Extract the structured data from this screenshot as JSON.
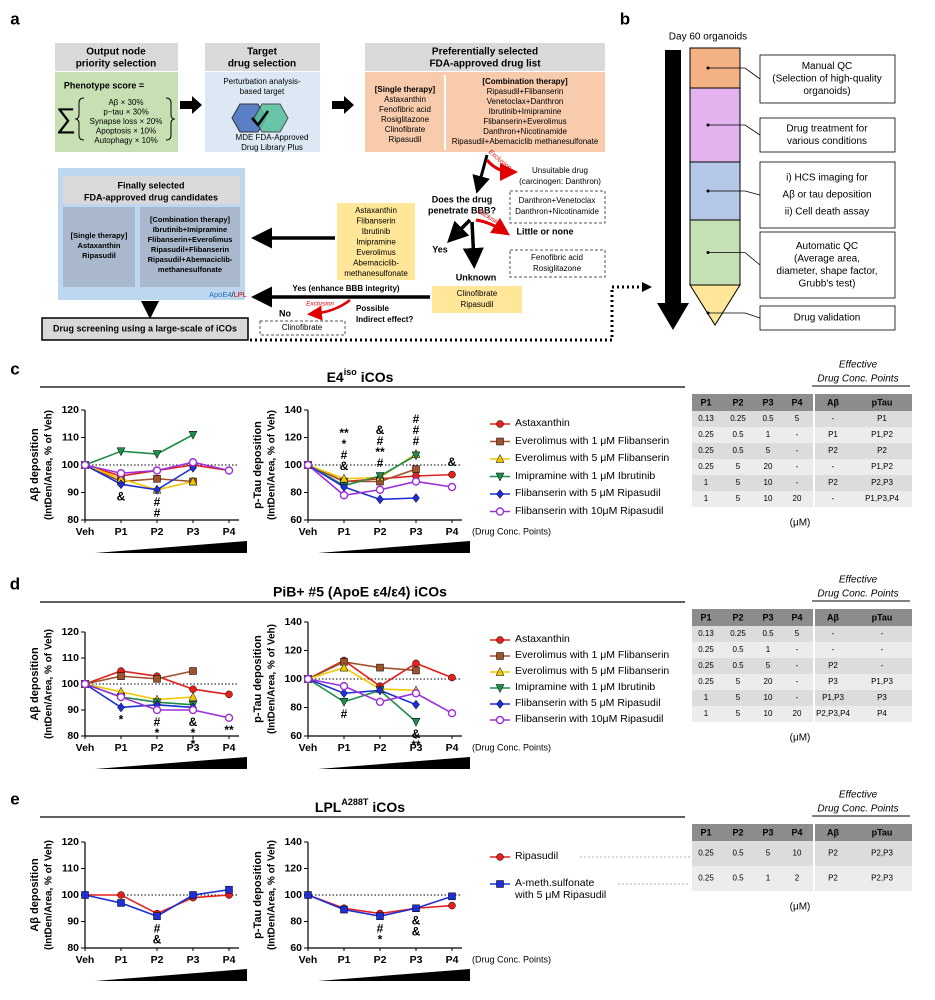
{
  "panel_a": {
    "label": "a",
    "output": {
      "header": [
        "Output node",
        "priority selection"
      ],
      "score_title": "Phenotype score =",
      "sigma": "∑",
      "terms": [
        "Aβ × 30%",
        "p−tau × 30%",
        "Synapse loss × 20%",
        "Apoptosis × 10%",
        "Autophagy × 10%"
      ]
    },
    "target": {
      "header": [
        "Target",
        "drug selection"
      ],
      "lines": [
        "Perturbation analysis-",
        "based target"
      ],
      "library": [
        "MDE FDA-Approved",
        "Drug Library Plus"
      ]
    },
    "preferred": {
      "header": [
        "Preferentially selected",
        "FDA-approved drug list"
      ],
      "single_title": "[Single therapy]",
      "single": [
        "Astaxanthin",
        "Fenofibric acid",
        "Rosiglitazone",
        "Clinofibrate",
        "Ripasudil"
      ],
      "combo_title": "[Combination therapy]",
      "combo": [
        "Ripasudil+Flibanserin",
        "Venetoclax+Danthron",
        "Ibrutinib+Imipramine",
        "Flibanserin+Everolimus",
        "Danthron+Nicotinamide",
        "Ripasudil+Abemaciclib methanesulfonate"
      ]
    },
    "exclusions": [
      "Exclusion",
      "Exclusion",
      "Exclusion"
    ],
    "unsuitable": [
      "Unsuitable drug",
      "(carcinogen: Danthron)"
    ],
    "unsuitable_drugs": [
      "Danthron+Venetoclax",
      "Danthron+Nicotinamide"
    ],
    "bbb_question": [
      "Does the drug",
      "penetrate BBB?"
    ],
    "yes": "Yes",
    "little": "Little or none",
    "little_drugs": [
      "Fenofibric acid",
      "Rosiglitazone"
    ],
    "unknown": "Unknown",
    "unknown_drugs": [
      "Clinofibrate",
      "Ripasudil"
    ],
    "penetrating_drugs": [
      "Astaxanthin",
      "Flibanserin",
      "Ibrutinib",
      "Imipramine",
      "Everolimus",
      "Abemaciclib-",
      "methanesulfonate"
    ],
    "indirect_yes": "Yes (enhance BBB integrity)",
    "indirect_question": [
      "Possible",
      "Indirect effect?"
    ],
    "no": "No",
    "no_drugs": [
      "Clinofibrate"
    ],
    "final": {
      "header": [
        "Finally selected",
        "FDA-approved drug candidates"
      ],
      "single_title": "[Single therapy]",
      "single": [
        {
          "text": "Astaxanthin",
          "color": "#1f6fc4"
        },
        {
          "text": "Ripasudil",
          "color": "#c00000"
        }
      ],
      "combo_title": "[Combination therapy]",
      "combo": [
        {
          "text": "Ibrutinib+Imipramine",
          "color": "#1f6fc4"
        },
        {
          "text": "Flibanserin+Everolimus",
          "color": "#1f6fc4"
        },
        {
          "text": "Ripasudil+Flibanserin",
          "color": "#1f6fc4"
        },
        {
          "text": "Ripasudil+Abemaciclib-",
          "color": "#c00000"
        },
        {
          "text": "methanesulfonate",
          "color": "#c00000"
        }
      ],
      "key": [
        {
          "text": "ApoE4",
          "color": "#1f6fc4"
        },
        {
          "text": "/",
          "color": "#000000"
        },
        {
          "text": "LPL",
          "color": "#c00000"
        }
      ]
    },
    "screening": "Drug screening using a large-scale of iCOs"
  },
  "panel_b": {
    "label": "b",
    "title": "Day 60 organoids",
    "steps": [
      {
        "lines": [
          "Manual QC",
          "(Selection of high-quality",
          "organoids)"
        ],
        "color": "#f4b183"
      },
      {
        "lines": [
          "Drug treatment for",
          "various conditions"
        ],
        "color": "#e2b3ef"
      },
      {
        "lines": [
          "i) HCS imaging for",
          "Aβ or tau deposition",
          "ii) Cell death assay"
        ],
        "color": "#b4c7e7"
      },
      {
        "lines": [
          "Automatic QC",
          "(Average area,",
          "diameter, shape factor,",
          "Grubb's test)"
        ],
        "color": "#c5e0b4"
      },
      {
        "lines": [
          "Drug validation"
        ],
        "color": "#ffe699"
      }
    ]
  },
  "panels": [
    {
      "label": "c",
      "title": "E4",
      "title_sup": "iso",
      "title_suffix": "iCOs",
      "effective": [
        "Effective",
        "Drug Conc. Points"
      ],
      "table": {
        "columns": [
          "P1",
          "P2",
          "P3",
          "P4",
          "Aβ",
          "pTau"
        ],
        "rows": [
          [
            0.13,
            0.25,
            0.5,
            5,
            "-",
            "P1"
          ],
          [
            0.25,
            0.5,
            1,
            "-",
            "P1",
            "P1,P2"
          ],
          [
            0.25,
            0.5,
            5,
            "-",
            "P2",
            "P2"
          ],
          [
            0.25,
            5,
            20,
            "-",
            "-",
            "P1,P2"
          ],
          [
            1,
            5,
            10,
            "-",
            "P2",
            "P2,P3"
          ],
          [
            1,
            5,
            10,
            20,
            "-",
            "P1,P3,P4"
          ]
        ]
      },
      "unit": "(μM)"
    },
    {
      "label": "d",
      "title": "PiB+ #5 (ApoE ε4/ε4) iCOs",
      "effective": [
        "Effective",
        "Drug Conc. Points"
      ],
      "table": {
        "columns": [
          "P1",
          "P2",
          "P3",
          "P4",
          "Aβ",
          "pTau"
        ],
        "rows": [
          [
            0.13,
            0.25,
            0.5,
            5,
            "-",
            "-"
          ],
          [
            0.25,
            0.5,
            1,
            "-",
            "-",
            "-"
          ],
          [
            0.25,
            0.5,
            5,
            "-",
            "P2",
            "-"
          ],
          [
            0.25,
            5,
            20,
            "-",
            "P3",
            "P1,P3"
          ],
          [
            1,
            5,
            10,
            "-",
            "P1,P3",
            "P3"
          ],
          [
            1,
            5,
            10,
            20,
            "P2,P3,P4",
            "P4"
          ]
        ]
      },
      "unit": "(μM)"
    },
    {
      "label": "e",
      "title": "LPL",
      "title_sup": "A288T",
      "title_suffix": "iCOs",
      "effective": [
        "Effective",
        "Drug Conc. Points"
      ],
      "table": {
        "columns": [
          "P1",
          "P2",
          "P3",
          "P4",
          "Aβ",
          "pTau"
        ],
        "rows": [
          [
            0.25,
            0.5,
            5,
            10,
            "P2",
            "P2,P3"
          ],
          [
            0.25,
            0.5,
            1,
            2,
            "P2",
            "P2,P3"
          ]
        ]
      },
      "unit": "(μM)"
    }
  ],
  "chart_data": [
    {
      "type": "line",
      "ylabel": [
        "Aβ deposition",
        "(IntDen/Area, % of Veh)"
      ],
      "categories": [
        "Veh",
        "P1",
        "P2",
        "P3",
        "P4"
      ],
      "ylim": [
        80,
        120
      ],
      "yticks": [
        80,
        90,
        100,
        110,
        120
      ],
      "hline": 100,
      "annotation_side": "below",
      "series": [
        {
          "color": "#e3201b",
          "marker": "circle",
          "values": [
            100,
            96,
            98,
            100,
            98
          ]
        },
        {
          "color": "#a0522d",
          "marker": "square",
          "values": [
            100,
            94,
            95,
            94,
            null
          ]
        },
        {
          "color": "#f0c800",
          "marker": "triangle",
          "values": [
            100,
            95,
            91,
            94,
            null
          ]
        },
        {
          "color": "#1e8c4a",
          "marker": "triangle-down",
          "values": [
            100,
            105,
            104,
            111,
            null
          ]
        },
        {
          "color": "#1f2fd6",
          "marker": "diamond",
          "values": [
            100,
            93,
            91,
            99,
            null
          ]
        },
        {
          "color": "#9b30d9",
          "marker": "circle-open",
          "values": [
            100,
            97,
            98,
            101,
            98
          ]
        }
      ],
      "annotations": [
        {
          "x": "P1",
          "text": "&",
          "color": "#c06010"
        },
        {
          "x": "P2",
          "text": "#",
          "color": "#1f2fd6"
        },
        {
          "x": "P2",
          "text": "#",
          "color": "#f0c800"
        }
      ]
    },
    {
      "type": "line",
      "ylabel": [
        "p-Tau deposition",
        "(IntDen/Area, % of Veh)"
      ],
      "xlabel": "(Drug Conc. Points)",
      "categories": [
        "Veh",
        "P1",
        "P2",
        "P3",
        "P4"
      ],
      "ylim": [
        60,
        140
      ],
      "yticks": [
        60,
        80,
        100,
        120,
        140
      ],
      "hline": 100,
      "annotation_side": "above",
      "series": [
        {
          "name": "Astaxanthin",
          "color": "#e3201b",
          "marker": "circle",
          "values": [
            100,
            88,
            90,
            92,
            93
          ]
        },
        {
          "name": "Everolimus with 1 μM Flibanserin",
          "color": "#a0522d",
          "marker": "square",
          "values": [
            100,
            88,
            88,
            97,
            null
          ]
        },
        {
          "name": "Everolimus with 5 μM Flibanserin",
          "color": "#f0c800",
          "marker": "triangle",
          "values": [
            100,
            90,
            91,
            108,
            null
          ]
        },
        {
          "name": "Imipramine with 1 μM Ibrutinib",
          "color": "#1e8c4a",
          "marker": "triangle-down",
          "values": [
            100,
            85,
            92,
            107,
            null
          ]
        },
        {
          "name": "Flibanserin with 5 μM Ripasudil",
          "color": "#1f2fd6",
          "marker": "diamond",
          "values": [
            100,
            84,
            75,
            76,
            null
          ]
        },
        {
          "name": "Flibanserin with 10μM Ripasudil",
          "color": "#9b30d9",
          "marker": "circle-open",
          "values": [
            100,
            78,
            82,
            88,
            84
          ]
        }
      ],
      "annotations": [
        {
          "x": "P1",
          "text": "**",
          "color": "#1e8c4a"
        },
        {
          "x": "P1",
          "text": "*",
          "color": "#9b30d9"
        },
        {
          "x": "P1",
          "text": "#",
          "color": "#c06010"
        },
        {
          "x": "P1",
          "text": "&",
          "color": "#e3201b"
        },
        {
          "x": "P2",
          "text": "&",
          "color": "#f0c800"
        },
        {
          "x": "P2",
          "text": "#",
          "color": "#1f2fd6"
        },
        {
          "x": "P2",
          "text": "**",
          "color": "#1e8c4a"
        },
        {
          "x": "P2",
          "text": "#",
          "color": "#c06010"
        },
        {
          "x": "P3",
          "text": "#",
          "color": "#9b30d9"
        },
        {
          "x": "P3",
          "text": "#",
          "color": "#1f2fd6"
        },
        {
          "x": "P3",
          "text": "#",
          "color": "#f0c800"
        },
        {
          "x": "P4",
          "text": "&",
          "color": "#9b30d9"
        }
      ]
    },
    {
      "type": "line",
      "ylabel": [
        "Aβ deposition",
        "(IntDen/Area, % of Veh)"
      ],
      "categories": [
        "Veh",
        "P1",
        "P2",
        "P3",
        "P4"
      ],
      "ylim": [
        80,
        120
      ],
      "yticks": [
        80,
        90,
        100,
        110,
        120
      ],
      "hline": 100,
      "annotation_side": "below",
      "series": [
        {
          "color": "#e3201b",
          "marker": "circle",
          "values": [
            100,
            105,
            103,
            98,
            96
          ]
        },
        {
          "color": "#a0522d",
          "marker": "square",
          "values": [
            100,
            103,
            102,
            105,
            null
          ]
        },
        {
          "color": "#f0c800",
          "marker": "triangle",
          "values": [
            100,
            97,
            94,
            95,
            null
          ]
        },
        {
          "color": "#1e8c4a",
          "marker": "triangle-down",
          "values": [
            100,
            95,
            93,
            92,
            null
          ]
        },
        {
          "color": "#1f2fd6",
          "marker": "diamond",
          "values": [
            100,
            91,
            92,
            91,
            null
          ]
        },
        {
          "color": "#9b30d9",
          "marker": "circle-open",
          "values": [
            100,
            95,
            90,
            90,
            87
          ]
        }
      ],
      "annotations": [
        {
          "x": "P1",
          "text": "*",
          "color": "#1f2fd6"
        },
        {
          "x": "P2",
          "text": "#",
          "color": "#f0c800"
        },
        {
          "x": "P2",
          "text": "*",
          "color": "#9b30d9"
        },
        {
          "x": "P3",
          "text": "&",
          "color": "#1f2fd6"
        },
        {
          "x": "P3",
          "text": "*",
          "color": "#1e8c4a"
        },
        {
          "x": "P3",
          "text": "*",
          "color": "#9b30d9"
        },
        {
          "x": "P4",
          "text": "**",
          "color": "#9b30d9"
        }
      ]
    },
    {
      "type": "line",
      "ylabel": [
        "p-Tau deposition",
        "(IntDen/Area, % of Veh)"
      ],
      "xlabel": "(Drug Conc. Points)",
      "categories": [
        "Veh",
        "P1",
        "P2",
        "P3",
        "P4"
      ],
      "ylim": [
        60,
        140
      ],
      "yticks": [
        60,
        80,
        100,
        120,
        140
      ],
      "hline": 100,
      "annotation_side": "below",
      "series": [
        {
          "name": "Astaxanthin",
          "color": "#e3201b",
          "marker": "circle",
          "values": [
            100,
            113,
            95,
            111,
            101
          ]
        },
        {
          "name": "Everolimus with 1 μM Flibanserin",
          "color": "#a0522d",
          "marker": "square",
          "values": [
            100,
            112,
            108,
            106,
            null
          ]
        },
        {
          "name": "Everolimus with 5 μM Flibanserin",
          "color": "#f0c800",
          "marker": "triangle",
          "values": [
            100,
            108,
            93,
            92,
            null
          ]
        },
        {
          "name": "Imipramine with 1 μM Ibrutinib",
          "color": "#1e8c4a",
          "marker": "triangle-down",
          "values": [
            100,
            84,
            92,
            70,
            null
          ]
        },
        {
          "name": "Flibanserin with 5 μM Ripasudil",
          "color": "#1f2fd6",
          "marker": "diamond",
          "values": [
            100,
            90,
            92,
            82,
            null
          ]
        },
        {
          "name": "Flibanserin with 10μM Ripasudil",
          "color": "#9b30d9",
          "marker": "circle-open",
          "values": [
            100,
            95,
            84,
            90,
            76
          ]
        }
      ],
      "annotations": [
        {
          "x": "P1",
          "text": "#",
          "color": "#1e8c4a"
        },
        {
          "x": "P3",
          "text": "&",
          "color": "#1f2fd6"
        },
        {
          "x": "P3",
          "text": "**",
          "color": "#1e8c4a"
        }
      ]
    },
    {
      "type": "line",
      "ylabel": [
        "Aβ deposition",
        "(IntDen/Area, % of Veh)"
      ],
      "categories": [
        "Veh",
        "P1",
        "P2",
        "P3",
        "P4"
      ],
      "ylim": [
        80,
        120
      ],
      "yticks": [
        80,
        90,
        100,
        110,
        120
      ],
      "hline": 100,
      "annotation_side": "below",
      "series": [
        {
          "color": "#e3201b",
          "marker": "circle",
          "values": [
            100,
            100,
            93,
            99,
            100
          ]
        },
        {
          "color": "#1f2fd6",
          "marker": "square",
          "values": [
            100,
            97,
            92,
            100,
            102
          ]
        }
      ],
      "annotations": [
        {
          "x": "P2",
          "text": "#",
          "color": "#e3201b"
        },
        {
          "x": "P2",
          "text": "&",
          "color": "#1f2fd6"
        }
      ]
    },
    {
      "type": "line",
      "ylabel": [
        "p-Tau deposition",
        "(IntDen/Area, % of Veh)"
      ],
      "xlabel": "(Drug Conc. Points)",
      "categories": [
        "Veh",
        "P1",
        "P2",
        "P3",
        "P4"
      ],
      "ylim": [
        60,
        140
      ],
      "yticks": [
        60,
        80,
        100,
        120,
        140
      ],
      "hline": 100,
      "annotation_side": "below",
      "series": [
        {
          "name": "Ripasudil",
          "color": "#e3201b",
          "marker": "circle",
          "values": [
            100,
            90,
            86,
            90,
            92
          ]
        },
        {
          "name": "A-meth.sulfonate with 5 μM Ripasudil",
          "color": "#1f2fd6",
          "marker": "square",
          "values": [
            100,
            89,
            84,
            90,
            99
          ]
        }
      ],
      "annotations": [
        {
          "x": "P2",
          "text": "#",
          "color": "#e3201b"
        },
        {
          "x": "P2",
          "text": "*",
          "color": "#1f2fd6"
        },
        {
          "x": "P3",
          "text": "&",
          "color": "#e3201b"
        },
        {
          "x": "P3",
          "text": "&",
          "color": "#1f2fd6"
        }
      ]
    }
  ]
}
